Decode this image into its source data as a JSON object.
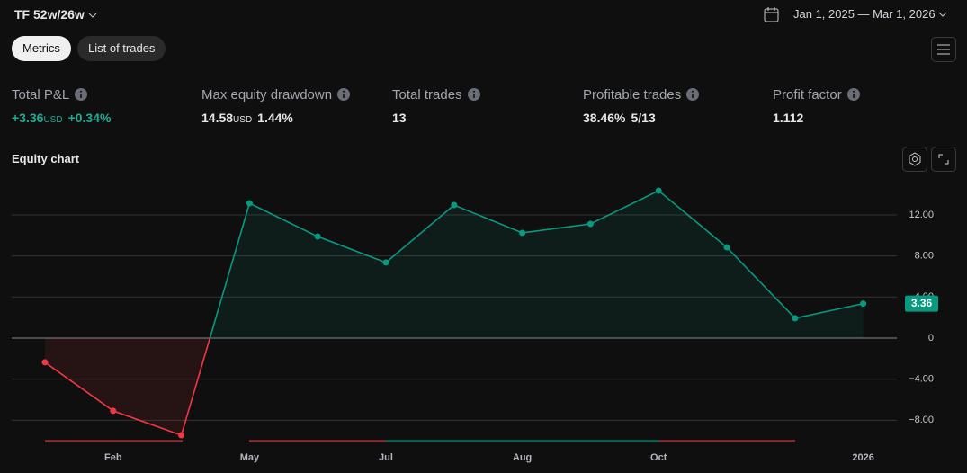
{
  "header": {
    "strategy": "TF 52w/26w",
    "date_range": "Jan 1, 2025 — Mar 1, 2026"
  },
  "tabs": [
    "Metrics",
    "List of trades"
  ],
  "metrics": [
    {
      "label": "Total P&L",
      "value": "+3.36",
      "unit": "USD",
      "extra": "+0.34%"
    },
    {
      "label": "Max equity drawdown",
      "value": "14.58",
      "unit": "USD",
      "extra": "1.44%"
    },
    {
      "label": "Total trades",
      "value": "13"
    },
    {
      "label": "Profitable trades",
      "value": "38.46%",
      "extra": "5/13"
    },
    {
      "label": "Profit factor",
      "value": "1.112"
    }
  ],
  "chart_data": {
    "type": "line",
    "title": "Equity chart",
    "categories": [
      null,
      "Feb",
      null,
      "May",
      null,
      "Jul",
      null,
      "Aug",
      null,
      "Oct",
      null,
      null,
      "2026"
    ],
    "series": [
      {
        "color": "#089981",
        "negative_color": "#f23645",
        "values": [
          -2.36,
          -7.09,
          -9.46,
          13.13,
          9.89,
          7.36,
          12.96,
          10.25,
          11.12,
          14.36,
          8.84,
          1.93,
          3.36
        ]
      }
    ],
    "ylim": [
      -10.6,
      15.85
    ],
    "yticks": [
      {
        "value": -8,
        "label": "−8.00"
      },
      {
        "value": -4,
        "label": "−4.00"
      },
      0,
      {
        "value": 4,
        "label": "4.00"
      },
      {
        "value": 8,
        "label": "8.00"
      },
      {
        "value": 12,
        "label": "12.00"
      }
    ],
    "grid": true
  }
}
